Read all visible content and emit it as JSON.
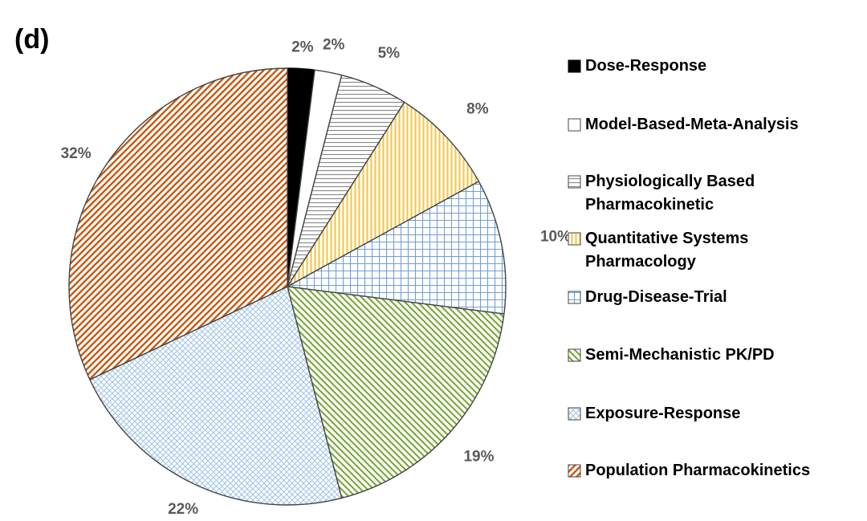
{
  "panel_label": "(d)",
  "chart_data": {
    "type": "pie",
    "title": "",
    "start_angle_deg": 0,
    "direction": "clockwise",
    "slices": [
      {
        "name": "Dose-Response",
        "value": 2,
        "label": "2%",
        "legend_lines": [
          "Dose-Response"
        ],
        "color": "#000000",
        "pattern": "solid"
      },
      {
        "name": "Model-Based-Meta-Analysis",
        "value": 2,
        "label": "2%",
        "legend_lines": [
          "Model-Based-Meta-Analysis"
        ],
        "color": "#ffffff",
        "pattern": "none"
      },
      {
        "name": "Physiologically Based Pharmacokinetic",
        "value": 5,
        "label": "5%",
        "legend_lines": [
          "Physiologically Based",
          "Pharmacokinetic"
        ],
        "color": "#8c8c8c",
        "pattern": "horizontal"
      },
      {
        "name": "Quantitative Systems Pharmacology",
        "value": 8,
        "label": "8%",
        "legend_lines": [
          "Quantitative Systems",
          "Pharmacology"
        ],
        "color": "#f2c94c",
        "pattern": "vertical"
      },
      {
        "name": "Drug-Disease-Trial",
        "value": 10,
        "label": "10%",
        "legend_lines": [
          "Drug-Disease-Trial"
        ],
        "color": "#6f9fd8",
        "pattern": "grid"
      },
      {
        "name": "Semi-Mechanistic PK/PD",
        "value": 19,
        "label": "19%",
        "legend_lines": [
          "Semi-Mechanistic PK/PD"
        ],
        "color": "#7aab3a",
        "pattern": "diag-down"
      },
      {
        "name": "Exposure-Response",
        "value": 22,
        "label": "22%",
        "legend_lines": [
          "Exposure-Response"
        ],
        "color": "#9dc3e6",
        "pattern": "cross"
      },
      {
        "name": "Population Pharmacokinetics",
        "value": 32,
        "label": "32%",
        "legend_lines": [
          "Population Pharmacokinetics"
        ],
        "color": "#c55a11",
        "pattern": "diag-up"
      }
    ]
  }
}
